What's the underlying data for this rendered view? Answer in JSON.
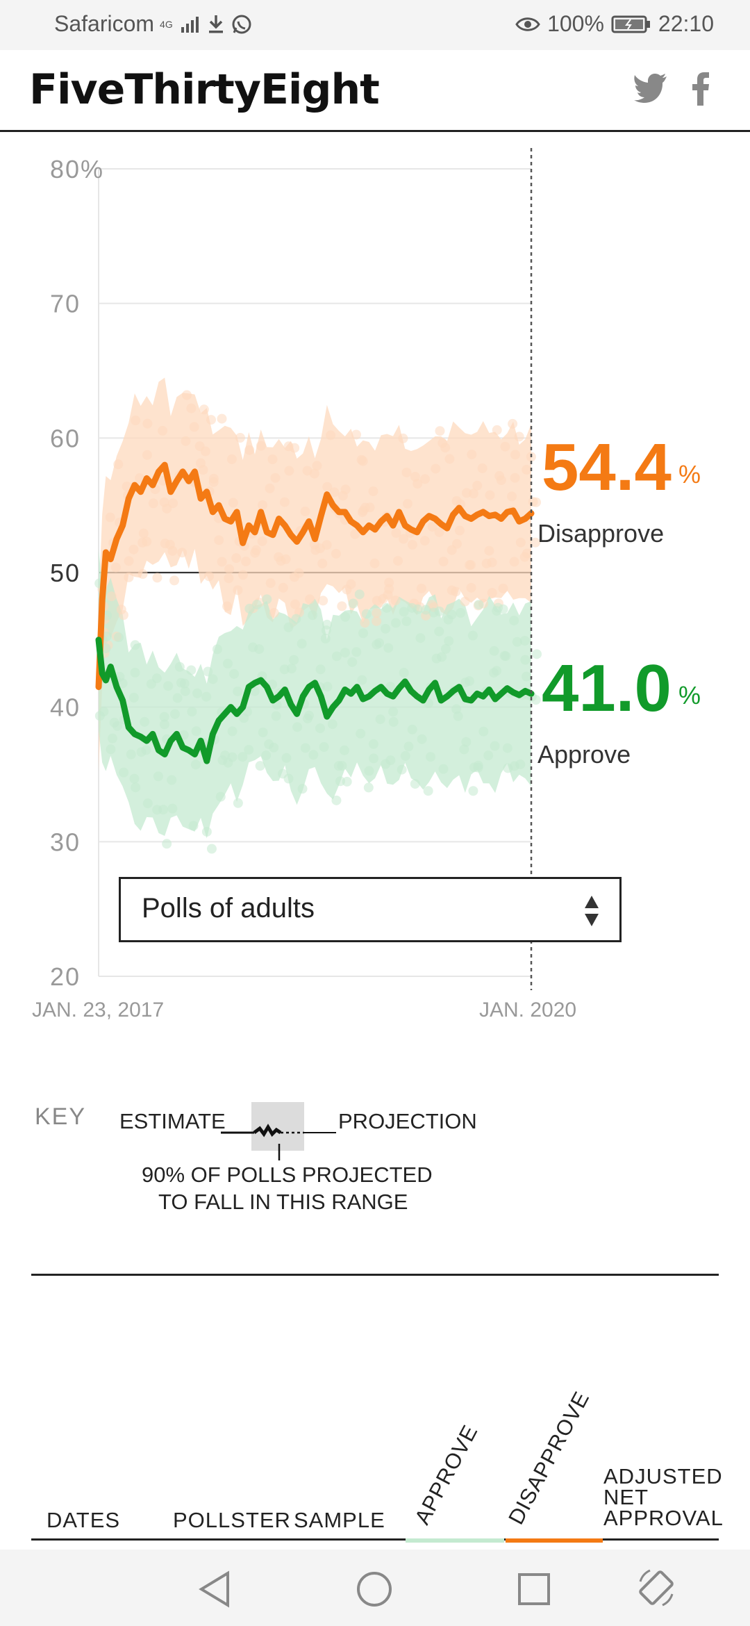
{
  "status_bar": {
    "carrier": "Safaricom",
    "network": "4G",
    "battery": "100%",
    "time": "22:10"
  },
  "header": {
    "logo": "FiveThirtyEight",
    "share_icons": [
      "twitter-icon",
      "facebook-icon"
    ]
  },
  "colors": {
    "disapprove": "#f47a14",
    "disapprove_band": "#fdd9bd",
    "approve": "#119a2a",
    "approve_band": "#c4ead0"
  },
  "chart_data": {
    "type": "line",
    "title": "",
    "x_start_label": "JAN. 23, 2017",
    "x_end_label": "JAN. 2020",
    "ylabel": "",
    "ylim": [
      20,
      80
    ],
    "y_ticks": [
      {
        "value": 80,
        "label": "80%"
      },
      {
        "value": 70,
        "label": "70"
      },
      {
        "value": 60,
        "label": "60"
      },
      {
        "value": 50,
        "label": "50"
      },
      {
        "value": 40,
        "label": "40"
      },
      {
        "value": 30,
        "label": "30"
      },
      {
        "value": 20,
        "label": "20"
      }
    ],
    "x_range_months": [
      0,
      36
    ],
    "series": [
      {
        "name": "Disapprove",
        "final_value": "54.4",
        "x": [
          0,
          0.3,
          0.6,
          1,
          1.5,
          2,
          2.5,
          3,
          3.5,
          4,
          4.5,
          5,
          5.5,
          6,
          6.5,
          7,
          7.5,
          8,
          8.5,
          9,
          9.5,
          10,
          10.5,
          11,
          11.5,
          12,
          12.5,
          13,
          13.5,
          14,
          14.5,
          15,
          15.5,
          16,
          16.5,
          17,
          17.5,
          18,
          18.5,
          19,
          19.5,
          20,
          20.5,
          21,
          21.5,
          22,
          22.5,
          23,
          23.5,
          24,
          24.5,
          25,
          25.5,
          26,
          26.5,
          27,
          27.5,
          28,
          28.5,
          29,
          29.5,
          30,
          30.5,
          31,
          31.5,
          32,
          32.5,
          33,
          33.5,
          34,
          34.5,
          35,
          35.5,
          36
        ],
        "values": [
          41.5,
          48,
          51.5,
          51,
          52.5,
          53.5,
          55.5,
          56.5,
          56,
          57,
          56.5,
          57.5,
          58,
          56,
          56.8,
          57.5,
          56.8,
          57.5,
          55.5,
          56,
          54.5,
          55,
          54,
          53.8,
          54.5,
          52.2,
          53.5,
          53,
          54.5,
          53,
          52.8,
          54,
          53.5,
          52.8,
          52.3,
          53,
          53.8,
          52.5,
          54.2,
          55.8,
          55,
          54.5,
          54.5,
          53.8,
          53.5,
          53,
          53.5,
          53.2,
          53.8,
          54.2,
          53.5,
          54.5,
          53.5,
          53.2,
          53,
          53.8,
          54.2,
          54,
          53.6,
          53.3,
          54.3,
          54.8,
          54.2,
          54,
          54.3,
          54.5,
          54.2,
          54.3,
          54,
          54.5,
          54.6,
          53.8,
          54,
          54.4
        ]
      },
      {
        "name": "Approve",
        "final_value": "41.0",
        "x": [
          0,
          0.3,
          0.6,
          1,
          1.5,
          2,
          2.5,
          3,
          3.5,
          4,
          4.5,
          5,
          5.5,
          6,
          6.5,
          7,
          7.5,
          8,
          8.5,
          9,
          9.5,
          10,
          10.5,
          11,
          11.5,
          12,
          12.5,
          13,
          13.5,
          14,
          14.5,
          15,
          15.5,
          16,
          16.5,
          17,
          17.5,
          18,
          18.5,
          19,
          19.5,
          20,
          20.5,
          21,
          21.5,
          22,
          22.5,
          23,
          23.5,
          24,
          24.5,
          25,
          25.5,
          26,
          26.5,
          27,
          27.5,
          28,
          28.5,
          29,
          29.5,
          30,
          30.5,
          31,
          31.5,
          32,
          32.5,
          33,
          33.5,
          34,
          34.5,
          35,
          35.5,
          36
        ],
        "values": [
          45,
          42.5,
          42,
          43,
          41.5,
          40.5,
          38.5,
          38,
          37.8,
          37.5,
          38,
          36.8,
          36.5,
          37.5,
          38,
          37,
          36.8,
          36.5,
          37.5,
          36,
          38,
          39,
          39.5,
          40,
          39.5,
          40,
          41.5,
          41.8,
          42,
          41.5,
          40.5,
          40.8,
          41.3,
          40.2,
          39.5,
          40.8,
          41.5,
          41.8,
          40.8,
          39.3,
          40,
          40.5,
          41.3,
          41,
          41.5,
          40.6,
          40.8,
          41.2,
          41.5,
          41,
          40.8,
          41.4,
          41.9,
          41.2,
          40.8,
          40.5,
          41.3,
          41.8,
          40.5,
          40.8,
          41.2,
          41.5,
          40.6,
          40.5,
          41,
          40.8,
          41.3,
          40.6,
          41,
          41.4,
          41.1,
          40.9,
          41.2,
          41
        ]
      }
    ],
    "legend": "right-side labels at line ends"
  },
  "filter": {
    "selected": "Polls of adults"
  },
  "key": {
    "title": "KEY",
    "estimate": "ESTIMATE",
    "projection": "PROJECTION",
    "range_line1": "90% OF POLLS PROJECTED",
    "range_line2": "TO FALL IN THIS RANGE"
  },
  "table": {
    "col_dates": "DATES",
    "col_pollster": "POLLSTER",
    "col_sample": "SAMPLE",
    "col_approve": "APPROVE",
    "col_disapprove": "DISAPPROVE",
    "col_adjusted_1": "ADJUSTED",
    "col_adjusted_2": "NET",
    "col_adjusted_3": "APPROVAL"
  },
  "nav": [
    "back-icon",
    "home-icon",
    "recents-icon",
    "rotate-icon"
  ]
}
